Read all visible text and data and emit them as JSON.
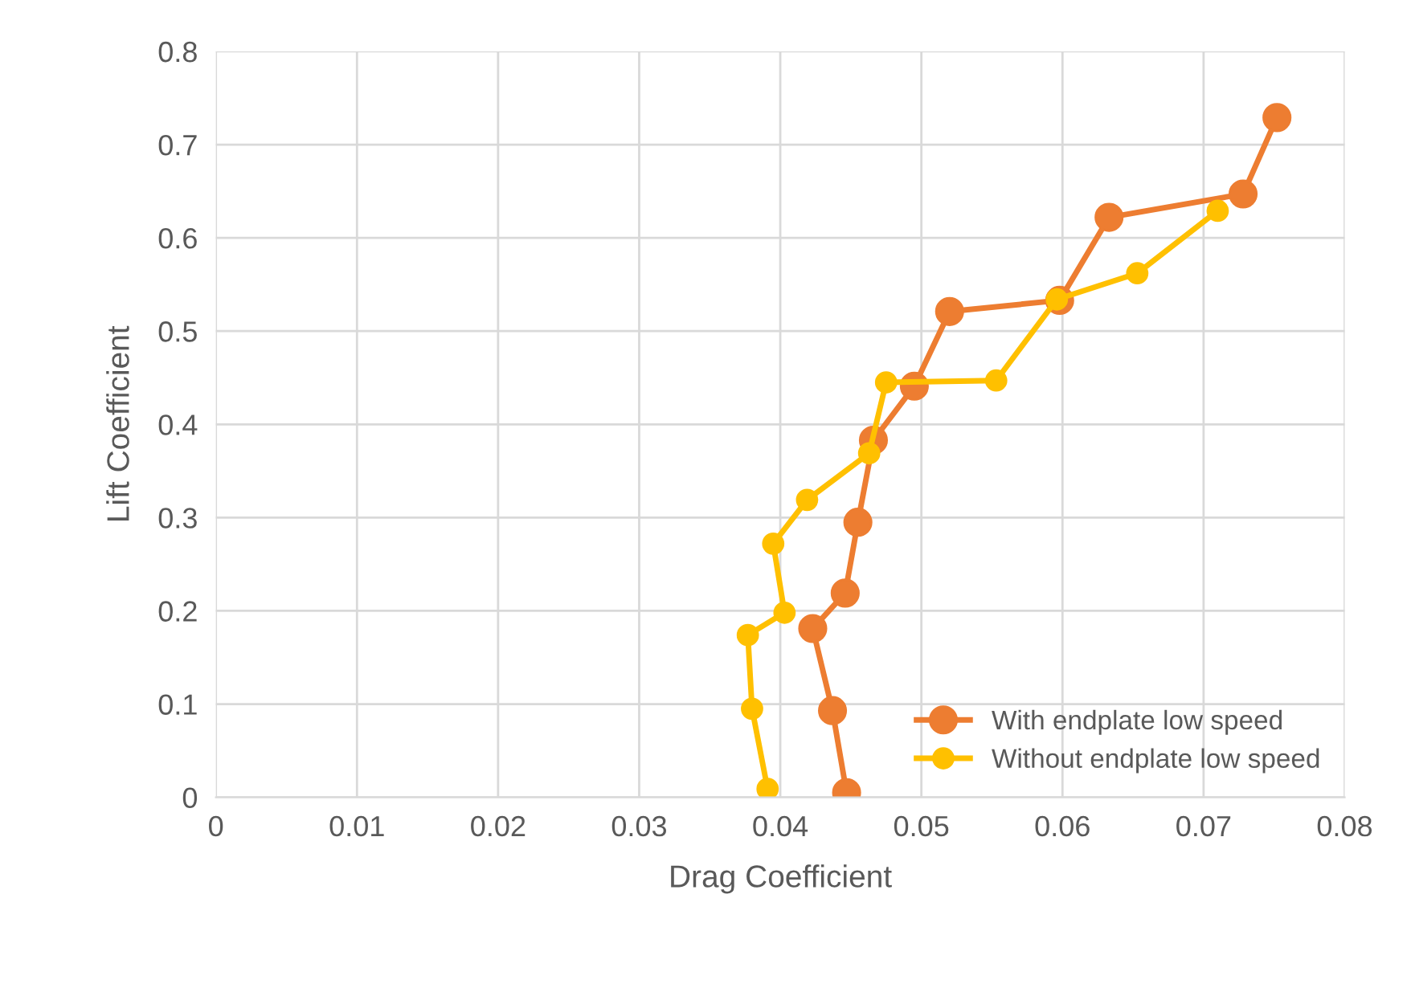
{
  "chart_data": {
    "type": "line",
    "xlabel": "Drag Coefficient",
    "ylabel": "Lift Coefficient",
    "xlim": [
      0,
      0.08
    ],
    "xticks": [
      0,
      0.01,
      0.02,
      0.03,
      0.04,
      0.05,
      0.06,
      0.07,
      0.08
    ],
    "ylim": [
      0,
      0.8
    ],
    "yticks": [
      0,
      0.1,
      0.2,
      0.3,
      0.4,
      0.5,
      0.6,
      0.7,
      0.8
    ],
    "grid": true,
    "legend": "bottom right",
    "marker": "circle",
    "line_style": "solid",
    "series": [
      {
        "name": "With endplate low speed",
        "color": "#ed7d31",
        "x": [
          0.0447,
          0.0437,
          0.0423,
          0.0446,
          0.0455,
          0.0466,
          0.0495,
          0.052,
          0.0598,
          0.0633,
          0.0728,
          0.0752
        ],
        "values": [
          0.005,
          0.093,
          0.181,
          0.219,
          0.295,
          0.383,
          0.441,
          0.521,
          0.533,
          0.622,
          0.647,
          0.729
        ]
      },
      {
        "name": "Without endplate low speed",
        "color": "#ffc000",
        "x": [
          0.0391,
          0.038,
          0.0377,
          0.0403,
          0.0395,
          0.0419,
          0.0463,
          0.0475,
          0.0553,
          0.0596,
          0.0653,
          0.071
        ],
        "values": [
          0.009,
          0.095,
          0.174,
          0.198,
          0.272,
          0.319,
          0.369,
          0.445,
          0.447,
          0.534,
          0.562,
          0.629
        ]
      }
    ]
  }
}
